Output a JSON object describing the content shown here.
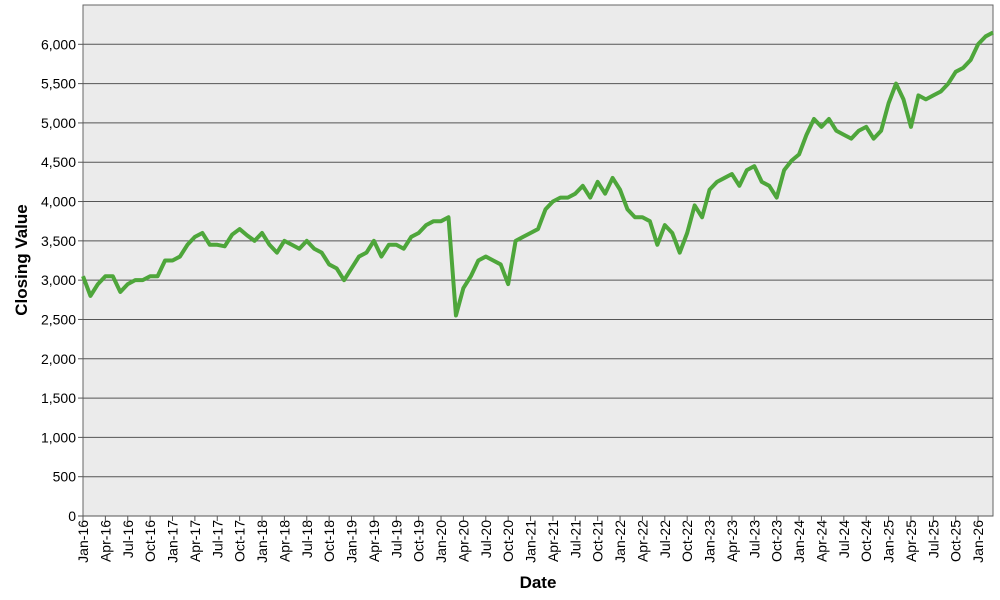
{
  "chart_data": {
    "type": "line",
    "x_label": "Date",
    "y_label": "Closing Value",
    "x": [
      "2016-01",
      "2016-02",
      "2016-03",
      "2016-04",
      "2016-05",
      "2016-06",
      "2016-07",
      "2016-08",
      "2016-09",
      "2016-10",
      "2016-11",
      "2016-12",
      "2017-01",
      "2017-02",
      "2017-03",
      "2017-04",
      "2017-05",
      "2017-06",
      "2017-07",
      "2017-08",
      "2017-09",
      "2017-10",
      "2017-11",
      "2017-12",
      "2018-01",
      "2018-02",
      "2018-03",
      "2018-04",
      "2018-05",
      "2018-06",
      "2018-07",
      "2018-08",
      "2018-09",
      "2018-10",
      "2018-11",
      "2018-12",
      "2019-01",
      "2019-02",
      "2019-03",
      "2019-04",
      "2019-05",
      "2019-06",
      "2019-07",
      "2019-08",
      "2019-09",
      "2019-10",
      "2019-11",
      "2019-12",
      "2020-01",
      "2020-02",
      "2020-03",
      "2020-04",
      "2020-05",
      "2020-06",
      "2020-07",
      "2020-08",
      "2020-09",
      "2020-10",
      "2020-11",
      "2020-12",
      "2021-01",
      "2021-02",
      "2021-03",
      "2021-04",
      "2021-05",
      "2021-06",
      "2021-07",
      "2021-08",
      "2021-09",
      "2021-10",
      "2021-11",
      "2021-12",
      "2022-01",
      "2022-02",
      "2022-03",
      "2022-04",
      "2022-05",
      "2022-06",
      "2022-07",
      "2022-08",
      "2022-09",
      "2022-10",
      "2022-11",
      "2022-12",
      "2023-01",
      "2023-02",
      "2023-03",
      "2023-04",
      "2023-05",
      "2023-06",
      "2023-07",
      "2023-08",
      "2023-09",
      "2023-10",
      "2023-11",
      "2023-12",
      "2024-01",
      "2024-02",
      "2024-03",
      "2024-04",
      "2024-05",
      "2024-06",
      "2024-07",
      "2024-08",
      "2024-09",
      "2024-10",
      "2024-11",
      "2024-12",
      "2025-01",
      "2025-02",
      "2025-03",
      "2025-04",
      "2025-05",
      "2025-06",
      "2025-07",
      "2025-08",
      "2025-09",
      "2025-10",
      "2025-11",
      "2025-12",
      "2026-01",
      "2026-02",
      "2026-03"
    ],
    "series": [
      {
        "color": "#4ea63b",
        "values": [
          3050,
          2800,
          2950,
          3050,
          3050,
          2850,
          2950,
          3000,
          3000,
          3050,
          3050,
          3250,
          3250,
          3300,
          3450,
          3550,
          3600,
          3450,
          3450,
          3430,
          3580,
          3650,
          3570,
          3500,
          3600,
          3450,
          3350,
          3500,
          3450,
          3400,
          3500,
          3400,
          3350,
          3200,
          3150,
          3000,
          3150,
          3300,
          3350,
          3500,
          3300,
          3450,
          3450,
          3400,
          3550,
          3600,
          3700,
          3750,
          3750,
          3800,
          2550,
          2900,
          3050,
          3250,
          3300,
          3250,
          3200,
          2950,
          3500,
          3550,
          3600,
          3650,
          3900,
          4000,
          4050,
          4050,
          4100,
          4200,
          4050,
          4250,
          4100,
          4300,
          4150,
          3900,
          3800,
          3800,
          3750,
          3450,
          3700,
          3600,
          3350,
          3600,
          3950,
          3800,
          4150,
          4250,
          4300,
          4350,
          4200,
          4400,
          4450,
          4250,
          4200,
          4050,
          4400,
          4520,
          4600,
          4850,
          5050,
          4950,
          5050,
          4900,
          4850,
          4800,
          4900,
          4950,
          4800,
          4900,
          5250,
          5500,
          5300,
          4950,
          5350,
          5300,
          5350,
          5400,
          5500,
          5650,
          5700,
          5800,
          6000,
          6100,
          6150
        ]
      }
    ],
    "xlim": [
      "2016-01",
      "2026-03"
    ],
    "xticks": [
      {
        "value": "2016-01",
        "label": "Jan-16"
      },
      {
        "value": "2016-04",
        "label": "Apr-16"
      },
      {
        "value": "2016-07",
        "label": "Jul-16"
      },
      {
        "value": "2016-10",
        "label": "Oct-16"
      },
      {
        "value": "2017-01",
        "label": "Jan-17"
      },
      {
        "value": "2017-04",
        "label": "Apr-17"
      },
      {
        "value": "2017-07",
        "label": "Jul-17"
      },
      {
        "value": "2017-10",
        "label": "Oct-17"
      },
      {
        "value": "2018-01",
        "label": "Jan-18"
      },
      {
        "value": "2018-04",
        "label": "Apr-18"
      },
      {
        "value": "2018-07",
        "label": "Jul-18"
      },
      {
        "value": "2018-10",
        "label": "Oct-18"
      },
      {
        "value": "2019-01",
        "label": "Jan-19"
      },
      {
        "value": "2019-04",
        "label": "Apr-19"
      },
      {
        "value": "2019-07",
        "label": "Jul-19"
      },
      {
        "value": "2019-10",
        "label": "Oct-19"
      },
      {
        "value": "2020-01",
        "label": "Jan-20"
      },
      {
        "value": "2020-04",
        "label": "Apr-20"
      },
      {
        "value": "2020-07",
        "label": "Jul-20"
      },
      {
        "value": "2020-10",
        "label": "Oct-20"
      },
      {
        "value": "2021-01",
        "label": "Jan-21"
      },
      {
        "value": "2021-04",
        "label": "Apr-21"
      },
      {
        "value": "2021-07",
        "label": "Jul-21"
      },
      {
        "value": "2021-10",
        "label": "Oct-21"
      },
      {
        "value": "2022-01",
        "label": "Jan-22"
      },
      {
        "value": "2022-04",
        "label": "Apr-22"
      },
      {
        "value": "2022-07",
        "label": "Jul-22"
      },
      {
        "value": "2022-10",
        "label": "Oct-22"
      },
      {
        "value": "2023-01",
        "label": "Jan-23"
      },
      {
        "value": "2023-04",
        "label": "Apr-23"
      },
      {
        "value": "2023-07",
        "label": "Jul-23"
      },
      {
        "value": "2023-10",
        "label": "Oct-23"
      },
      {
        "value": "2024-01",
        "label": "Jan-24"
      },
      {
        "value": "2024-04",
        "label": "Apr-24"
      },
      {
        "value": "2024-07",
        "label": "Jul-24"
      },
      {
        "value": "2024-10",
        "label": "Oct-24"
      },
      {
        "value": "2025-01",
        "label": "Jan-25"
      },
      {
        "value": "2025-04",
        "label": "Apr-25"
      },
      {
        "value": "2025-07",
        "label": "Jul-25"
      },
      {
        "value": "2025-10",
        "label": "Oct-25"
      },
      {
        "value": "2026-01",
        "label": "Jan-26"
      }
    ],
    "ylim": [
      0,
      6500
    ],
    "yticks": [
      0,
      500,
      {
        "value": 1000,
        "label": "1,000"
      },
      {
        "value": 1500,
        "label": "1,500"
      },
      {
        "value": 2000,
        "label": "2,000"
      },
      {
        "value": 2500,
        "label": "2,500"
      },
      {
        "value": 3000,
        "label": "3,000"
      },
      {
        "value": 3500,
        "label": "3,500"
      },
      {
        "value": 4000,
        "label": "4,000"
      },
      {
        "value": 4500,
        "label": "4,500"
      },
      {
        "value": 5000,
        "label": "5,000"
      },
      {
        "value": 5500,
        "label": "5,500"
      },
      {
        "value": 6000,
        "label": "6,000"
      }
    ],
    "grid": true
  }
}
